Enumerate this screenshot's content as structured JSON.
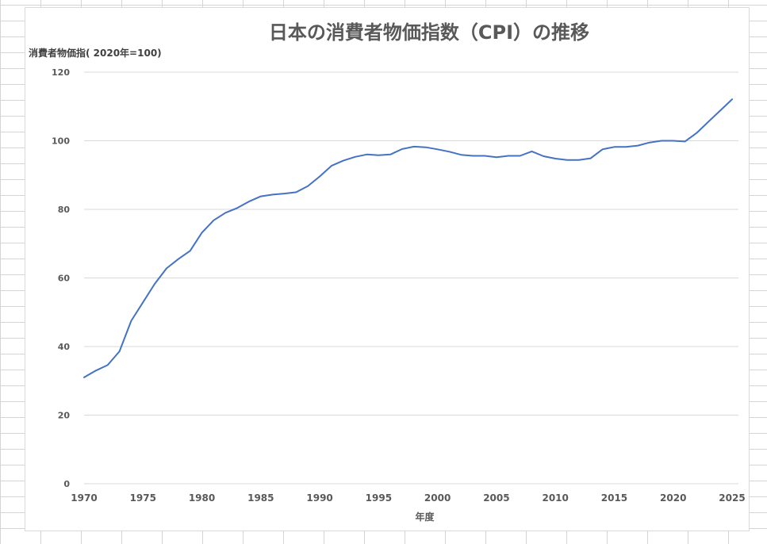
{
  "chart_data": {
    "type": "line",
    "title": "日本の消費者物価指数（CPI）の推移",
    "ylabel": "消費者物価指( 2020年=100)",
    "xlabel": "年度",
    "xlim": [
      1970,
      2025
    ],
    "ylim": [
      0,
      120
    ],
    "xticks": [
      1970,
      1975,
      1980,
      1985,
      1990,
      1995,
      2000,
      2005,
      2010,
      2015,
      2020,
      2025
    ],
    "yticks": [
      0,
      20,
      40,
      60,
      80,
      100,
      120
    ],
    "grid": true,
    "legend": "none",
    "line_color": "#4472c4",
    "series": [
      {
        "x": [
          1970,
          1971,
          1972,
          1973,
          1974,
          1975,
          1976,
          1977,
          1978,
          1979,
          1980,
          1981,
          1982,
          1983,
          1984,
          1985,
          1986,
          1987,
          1988,
          1989,
          1990,
          1991,
          1992,
          1993,
          1994,
          1995,
          1996,
          1997,
          1998,
          1999,
          2000,
          2001,
          2002,
          2003,
          2004,
          2005,
          2006,
          2007,
          2008,
          2009,
          2010,
          2011,
          2012,
          2013,
          2014,
          2015,
          2016,
          2017,
          2018,
          2019,
          2020,
          2021,
          2022,
          2023,
          2024,
          2025
        ],
        "values": [
          31.0,
          33.0,
          34.6,
          38.6,
          47.5,
          52.9,
          58.3,
          62.8,
          65.5,
          67.9,
          73.2,
          76.8,
          79.0,
          80.4,
          82.3,
          83.8,
          84.3,
          84.6,
          85.0,
          86.8,
          89.6,
          92.7,
          94.2,
          95.3,
          96.0,
          95.8,
          96.0,
          97.6,
          98.3,
          98.1,
          97.5,
          96.8,
          95.9,
          95.6,
          95.6,
          95.2,
          95.6,
          95.6,
          96.9,
          95.5,
          94.8,
          94.4,
          94.4,
          94.9,
          97.5,
          98.2,
          98.2,
          98.6,
          99.5,
          100.0,
          100.0,
          99.8,
          102.3,
          105.6,
          108.8,
          112.1
        ]
      }
    ]
  }
}
